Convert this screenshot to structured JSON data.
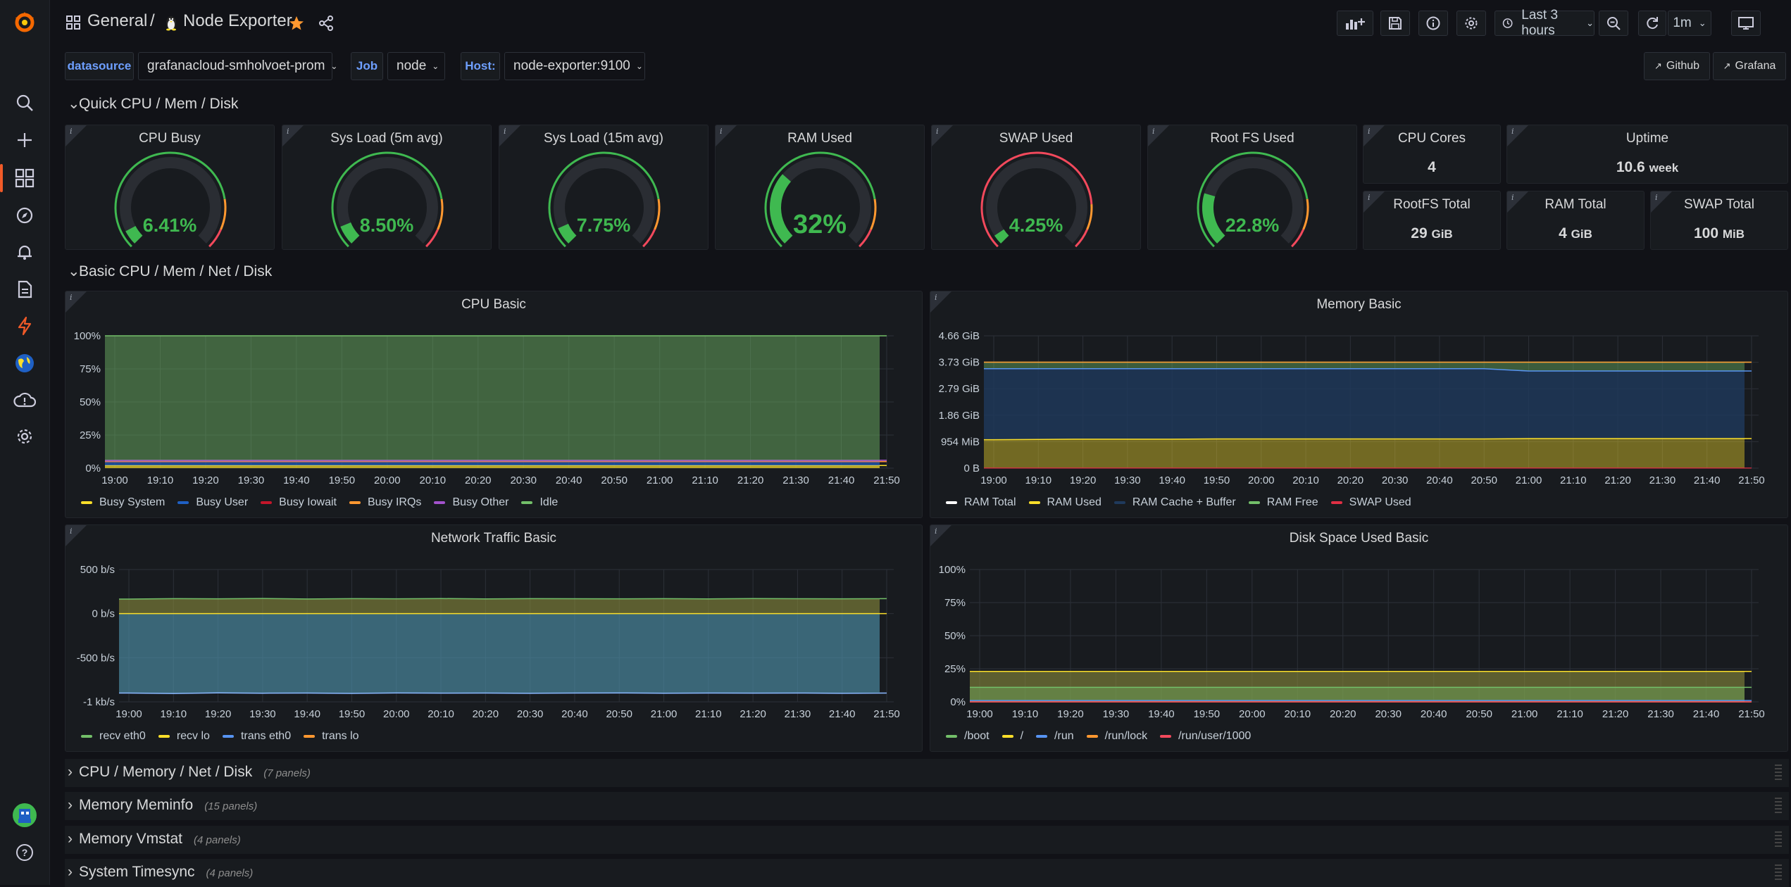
{
  "breadcrumb": {
    "folder": "General",
    "separator": "/",
    "title": "Node Exporter"
  },
  "toolbar": {
    "time_range": "Last 3 hours",
    "refresh_interval": "1m"
  },
  "variables": [
    {
      "label": "datasource",
      "value": "grafanacloud-smholvoet-prom"
    },
    {
      "label": "Job",
      "value": "node"
    },
    {
      "label": "Host:",
      "value": "node-exporter:9100"
    }
  ],
  "links": {
    "github": "Github",
    "grafana": "Grafana"
  },
  "rows": {
    "quick": "Quick CPU / Mem / Disk",
    "basic": "Basic CPU / Mem / Net / Disk",
    "collapsed": [
      {
        "title": "CPU / Memory / Net / Disk",
        "count": "(7 panels)"
      },
      {
        "title": "Memory Meminfo",
        "count": "(15 panels)"
      },
      {
        "title": "Memory Vmstat",
        "count": "(4 panels)"
      },
      {
        "title": "System Timesync",
        "count": "(4 panels)"
      }
    ]
  },
  "gauges": [
    {
      "title": "CPU Busy",
      "value": "6.41%",
      "fraction": 0.0641
    },
    {
      "title": "Sys Load (5m avg)",
      "value": "8.50%",
      "fraction": 0.085
    },
    {
      "title": "Sys Load (15m avg)",
      "value": "7.75%",
      "fraction": 0.0775
    },
    {
      "title": "RAM Used",
      "value": "32%",
      "fraction": 0.32
    },
    {
      "title": "SWAP Used",
      "value": "4.25%",
      "fraction": 0.0425
    },
    {
      "title": "Root FS Used",
      "value": "22.8%",
      "fraction": 0.228
    }
  ],
  "stats": {
    "cpu_cores": {
      "title": "CPU Cores",
      "value": "4",
      "unit": ""
    },
    "uptime": {
      "title": "Uptime",
      "value": "10.6",
      "unit": "week"
    },
    "rootfs_total": {
      "title": "RootFS Total",
      "value": "29",
      "unit": "GiB"
    },
    "ram_total": {
      "title": "RAM Total",
      "value": "4",
      "unit": "GiB"
    },
    "swap_total": {
      "title": "SWAP Total",
      "value": "100",
      "unit": "MiB"
    }
  },
  "colors": {
    "green": "#3fb950",
    "orange": "#ff9830",
    "red": "#f2495c",
    "accent": "#f05a28"
  },
  "chart_data": [
    {
      "type": "area",
      "title": "CPU Basic",
      "x": [
        "19:00",
        "19:10",
        "19:20",
        "19:30",
        "19:40",
        "19:50",
        "20:00",
        "20:10",
        "20:20",
        "20:30",
        "20:40",
        "20:50",
        "21:00",
        "21:10",
        "21:20",
        "21:30",
        "21:40",
        "21:50"
      ],
      "yticks": [
        "0%",
        "25%",
        "50%",
        "75%",
        "100%"
      ],
      "ylim": [
        0,
        100
      ],
      "series": [
        {
          "name": "Busy System",
          "color": "#fade2a",
          "values": [
            2,
            2,
            2,
            2,
            2,
            2,
            2,
            2,
            2,
            2,
            2,
            2,
            2,
            2,
            2,
            2,
            2,
            2
          ]
        },
        {
          "name": "Busy User",
          "color": "#1f60c4",
          "values": [
            3,
            3,
            3,
            3,
            3,
            3,
            3,
            3,
            3,
            3,
            3,
            3,
            3,
            3,
            3,
            3,
            3,
            3
          ]
        },
        {
          "name": "Busy Iowait",
          "color": "#c4162a",
          "values": [
            0,
            0,
            0,
            0,
            0,
            0,
            0,
            0,
            0,
            0,
            0,
            0,
            0,
            0,
            0,
            0,
            0,
            0
          ]
        },
        {
          "name": "Busy IRQs",
          "color": "#ff9830",
          "values": [
            0,
            0,
            0,
            0,
            0,
            0,
            0,
            0,
            0,
            0,
            0,
            0,
            0,
            0,
            0,
            0,
            0,
            0
          ]
        },
        {
          "name": "Busy Other",
          "color": "#a352cc",
          "values": [
            1,
            1,
            1,
            1,
            1,
            1,
            1,
            1,
            1,
            1,
            1,
            1,
            1,
            1,
            1,
            1,
            1,
            1
          ]
        },
        {
          "name": "Idle",
          "color": "#73bf69",
          "values": [
            94,
            94,
            94,
            94,
            94,
            94,
            94,
            94,
            94,
            94,
            94,
            94,
            94,
            94,
            94,
            94,
            94,
            94
          ]
        }
      ]
    },
    {
      "type": "area",
      "title": "Memory Basic",
      "x": [
        "19:00",
        "19:10",
        "19:20",
        "19:30",
        "19:40",
        "19:50",
        "20:00",
        "20:10",
        "20:20",
        "20:30",
        "20:40",
        "20:50",
        "21:00",
        "21:10",
        "21:20",
        "21:30",
        "21:40",
        "21:50"
      ],
      "yticks": [
        "0 B",
        "954 MiB",
        "1.86 GiB",
        "2.79 GiB",
        "3.73 GiB",
        "4.66 GiB"
      ],
      "ylim": [
        0,
        4.66
      ],
      "unit": "GiB",
      "series": [
        {
          "name": "RAM Total",
          "color": "#ffffff",
          "values": [
            3.73,
            3.73,
            3.73,
            3.73,
            3.73,
            3.73,
            3.73,
            3.73,
            3.73,
            3.73,
            3.73,
            3.73,
            3.73,
            3.73,
            3.73,
            3.73,
            3.73,
            3.73
          ]
        },
        {
          "name": "RAM Used",
          "color": "#fade2a",
          "values": [
            1.0,
            1.01,
            1.02,
            1.02,
            1.02,
            1.03,
            1.03,
            1.03,
            1.03,
            1.03,
            1.03,
            1.03,
            1.04,
            1.04,
            1.04,
            1.04,
            1.04,
            1.04
          ]
        },
        {
          "name": "RAM Cache + Buffer",
          "color": "#1f3a5c",
          "values": [
            2.5,
            2.49,
            2.48,
            2.48,
            2.48,
            2.47,
            2.47,
            2.47,
            2.47,
            2.47,
            2.47,
            2.47,
            2.38,
            2.38,
            2.38,
            2.38,
            2.38,
            2.38
          ]
        },
        {
          "name": "RAM Free",
          "color": "#73bf69",
          "values": [
            0.23,
            0.23,
            0.23,
            0.23,
            0.23,
            0.23,
            0.23,
            0.23,
            0.23,
            0.23,
            0.23,
            0.23,
            0.31,
            0.31,
            0.31,
            0.31,
            0.31,
            0.31
          ]
        },
        {
          "name": "SWAP Used",
          "color": "#e02f44",
          "values": [
            0.004,
            0.004,
            0.004,
            0.004,
            0.004,
            0.004,
            0.004,
            0.004,
            0.004,
            0.004,
            0.004,
            0.004,
            0.004,
            0.004,
            0.004,
            0.004,
            0.004,
            0.004
          ]
        }
      ]
    },
    {
      "type": "area",
      "title": "Network Traffic Basic",
      "x": [
        "19:00",
        "19:10",
        "19:20",
        "19:30",
        "19:40",
        "19:50",
        "20:00",
        "20:10",
        "20:20",
        "20:30",
        "20:40",
        "20:50",
        "21:00",
        "21:10",
        "21:20",
        "21:30",
        "21:40",
        "21:50"
      ],
      "yticks": [
        "-1 kb/s",
        "-500 b/s",
        "0 b/s",
        "500 b/s"
      ],
      "ylim": [
        -1000,
        500
      ],
      "unit": "b/s",
      "series": [
        {
          "name": "recv eth0",
          "color": "#73bf69",
          "values": [
            165,
            170,
            168,
            172,
            166,
            170,
            168,
            171,
            167,
            170,
            169,
            168,
            170,
            167,
            171,
            169,
            168,
            170
          ]
        },
        {
          "name": "recv lo",
          "color": "#fade2a",
          "values": [
            0,
            0,
            0,
            0,
            0,
            0,
            0,
            0,
            0,
            0,
            0,
            0,
            0,
            0,
            0,
            0,
            0,
            0
          ]
        },
        {
          "name": "trans eth0",
          "color": "#5794f2",
          "values": [
            -900,
            -905,
            -898,
            -902,
            -900,
            -904,
            -899,
            -901,
            -900,
            -903,
            -900,
            -899,
            -902,
            -900,
            -901,
            -900,
            -903,
            -900
          ]
        },
        {
          "name": "trans lo",
          "color": "#ff9830",
          "values": [
            0,
            0,
            0,
            0,
            0,
            0,
            0,
            0,
            0,
            0,
            0,
            0,
            0,
            0,
            0,
            0,
            0,
            0
          ]
        }
      ]
    },
    {
      "type": "area",
      "title": "Disk Space Used Basic",
      "x": [
        "19:00",
        "19:10",
        "19:20",
        "19:30",
        "19:40",
        "19:50",
        "20:00",
        "20:10",
        "20:20",
        "20:30",
        "20:40",
        "20:50",
        "21:00",
        "21:10",
        "21:20",
        "21:30",
        "21:40",
        "21:50"
      ],
      "yticks": [
        "0%",
        "25%",
        "50%",
        "75%",
        "100%"
      ],
      "ylim": [
        0,
        100
      ],
      "series": [
        {
          "name": "/boot",
          "color": "#73bf69",
          "values": [
            11,
            11,
            11,
            11,
            11,
            11,
            11,
            11,
            11,
            11,
            11,
            11,
            11,
            11,
            11,
            11,
            11,
            11
          ]
        },
        {
          "name": "/",
          "color": "#fade2a",
          "values": [
            23,
            23,
            23,
            23,
            23,
            23,
            23,
            23,
            23,
            23,
            23,
            23,
            23,
            23,
            23,
            23,
            23,
            23
          ]
        },
        {
          "name": "/run",
          "color": "#5794f2",
          "values": [
            1,
            1,
            1,
            1,
            1,
            1,
            1,
            1,
            1,
            1,
            1,
            1,
            1,
            1,
            1,
            1,
            1,
            1
          ]
        },
        {
          "name": "/run/lock",
          "color": "#ff9830",
          "values": [
            0,
            0,
            0,
            0,
            0,
            0,
            0,
            0,
            0,
            0,
            0,
            0,
            0,
            0,
            0,
            0,
            0,
            0
          ]
        },
        {
          "name": "/run/user/1000",
          "color": "#f2495c",
          "values": [
            0,
            0,
            0,
            0,
            0,
            0,
            0,
            0,
            0,
            0,
            0,
            0,
            0,
            0,
            0,
            0,
            0,
            0
          ]
        }
      ]
    }
  ]
}
